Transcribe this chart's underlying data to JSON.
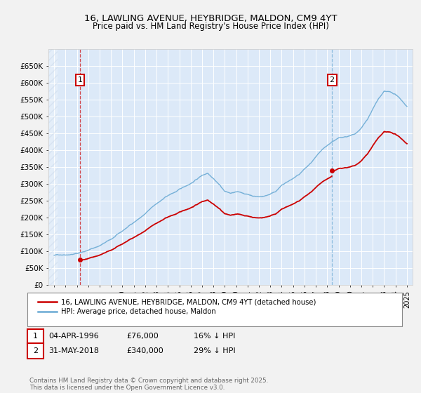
{
  "title": "16, LAWLING AVENUE, HEYBRIDGE, MALDON, CM9 4YT",
  "subtitle": "Price paid vs. HM Land Registry's House Price Index (HPI)",
  "ylim": [
    0,
    700000
  ],
  "xlim_year": [
    1993.5,
    2025.5
  ],
  "yticks": [
    0,
    50000,
    100000,
    150000,
    200000,
    250000,
    300000,
    350000,
    400000,
    450000,
    500000,
    550000,
    600000,
    650000
  ],
  "ytick_labels": [
    "£0",
    "£50K",
    "£100K",
    "£150K",
    "£200K",
    "£250K",
    "£300K",
    "£350K",
    "£400K",
    "£450K",
    "£500K",
    "£550K",
    "£600K",
    "£650K"
  ],
  "hpi_color": "#6aaad4",
  "sale_color": "#cc0000",
  "vline1_color": "#cc0000",
  "vline2_color": "#6aaad4",
  "ann1_year": 1996.27,
  "ann1_price": 76000,
  "ann2_year": 2018.42,
  "ann2_price": 340000,
  "annotation1_label": "1",
  "annotation2_label": "2",
  "annotation1_date": "04-APR-1996",
  "annotation1_price_str": "£76,000",
  "annotation1_hpi": "16% ↓ HPI",
  "annotation2_date": "31-MAY-2018",
  "annotation2_price_str": "£340,000",
  "annotation2_hpi": "29% ↓ HPI",
  "legend_line1": "16, LAWLING AVENUE, HEYBRIDGE, MALDON, CM9 4YT (detached house)",
  "legend_line2": "HPI: Average price, detached house, Maldon",
  "footnote": "Contains HM Land Registry data © Crown copyright and database right 2025.\nThis data is licensed under the Open Government Licence v3.0.",
  "bg_color": "#dce9f8",
  "fig_bg_color": "#f2f2f2",
  "hpi_base_x": [
    1994,
    1995,
    1996,
    1997,
    1998,
    1999,
    2000,
    2001,
    2002,
    2003,
    2004,
    2005,
    2006,
    2007,
    2007.5,
    2008,
    2008.5,
    2009,
    2009.5,
    2010,
    2010.5,
    2011,
    2011.5,
    2012,
    2012.5,
    2013,
    2013.5,
    2014,
    2014.5,
    2015,
    2015.5,
    2016,
    2016.5,
    2017,
    2017.5,
    2018,
    2018.5,
    2019,
    2019.5,
    2020,
    2020.5,
    2021,
    2021.5,
    2022,
    2022.5,
    2023,
    2023.5,
    2024,
    2024.5,
    2025
  ],
  "hpi_base_y": [
    88000,
    92000,
    97000,
    108000,
    122000,
    140000,
    163000,
    190000,
    215000,
    245000,
    268000,
    285000,
    305000,
    330000,
    338000,
    325000,
    308000,
    288000,
    282000,
    285000,
    282000,
    278000,
    274000,
    272000,
    275000,
    282000,
    292000,
    308000,
    318000,
    328000,
    338000,
    355000,
    370000,
    388000,
    405000,
    418000,
    432000,
    440000,
    445000,
    448000,
    452000,
    468000,
    492000,
    525000,
    555000,
    575000,
    572000,
    565000,
    548000,
    530000
  ]
}
